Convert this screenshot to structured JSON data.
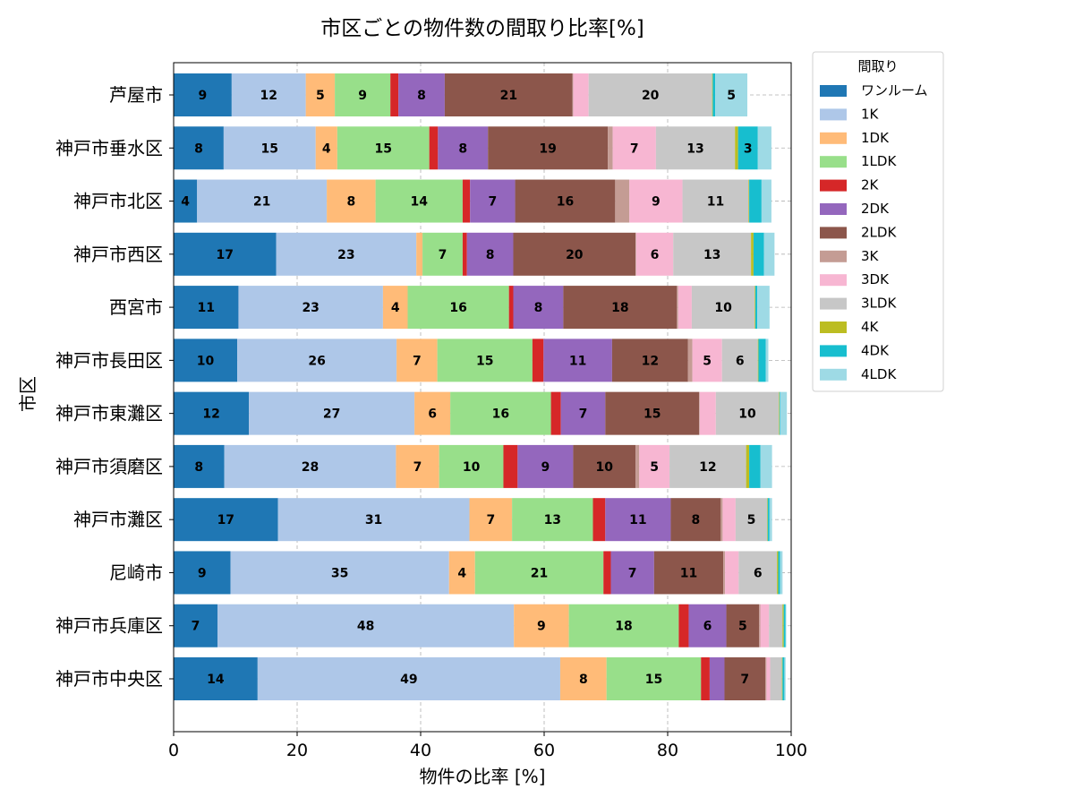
{
  "chart_data": {
    "type": "bar",
    "orientation": "horizontal",
    "stacked": true,
    "title": "市区ごとの物件数の間取り比率[%]",
    "xlabel": "物件の比率 [%]",
    "ylabel": "市区",
    "xlim": [
      0,
      100
    ],
    "xticks": [
      "0",
      "20",
      "40",
      "60",
      "80",
      "100"
    ],
    "grid": true,
    "legend_title": "間取り",
    "legend_position": "outside-top-right",
    "categories": [
      "神戸市中央区",
      "神戸市兵庫区",
      "尼崎市",
      "神戸市灘区",
      "神戸市須磨区",
      "神戸市東灘区",
      "神戸市長田区",
      "西宮市",
      "神戸市西区",
      "神戸市北区",
      "神戸市垂水区",
      "芦屋市"
    ],
    "series": [
      {
        "name": "ワンルーム",
        "color": "#1f77b4",
        "values": [
          13.6,
          7.1,
          9.2,
          16.9,
          8.2,
          12.2,
          10.3,
          10.5,
          16.6,
          3.8,
          8.1,
          9.4
        ]
      },
      {
        "name": "1K",
        "color": "#aec7e8",
        "values": [
          49.0,
          48.0,
          35.4,
          31.0,
          27.8,
          26.8,
          25.8,
          23.4,
          22.7,
          21.0,
          14.9,
          12.0
        ]
      },
      {
        "name": "1DK",
        "color": "#ffbb78",
        "values": [
          7.5,
          8.9,
          4.2,
          6.9,
          7.0,
          5.8,
          6.6,
          4.0,
          1.0,
          7.9,
          3.5,
          4.7
        ]
      },
      {
        "name": "1LDK",
        "color": "#98df8a",
        "values": [
          15.3,
          17.8,
          20.8,
          13.1,
          10.4,
          16.3,
          15.4,
          16.4,
          6.5,
          14.1,
          14.9,
          9.0
        ]
      },
      {
        "name": "2K",
        "color": "#d62728",
        "values": [
          1.4,
          1.6,
          1.2,
          2.0,
          2.3,
          1.6,
          1.8,
          0.7,
          0.7,
          1.2,
          1.4,
          1.3
        ]
      },
      {
        "name": "2DK",
        "color": "#9467bd",
        "values": [
          2.4,
          6.1,
          7.0,
          10.6,
          9.0,
          7.2,
          11.1,
          8.1,
          7.5,
          7.3,
          8.1,
          7.5
        ]
      },
      {
        "name": "2LDK",
        "color": "#8c564b",
        "values": [
          6.6,
          5.3,
          11.2,
          8.1,
          10.1,
          15.2,
          12.3,
          18.4,
          19.8,
          16.2,
          19.4,
          20.7
        ]
      },
      {
        "name": "3K",
        "color": "#c49c94",
        "values": [
          0.2,
          0.2,
          0.3,
          0.3,
          0.6,
          0.1,
          0.7,
          0.2,
          0.1,
          2.3,
          0.8,
          0.1
        ]
      },
      {
        "name": "3DK",
        "color": "#f7b6d2",
        "values": [
          0.6,
          1.4,
          2.2,
          2.1,
          4.9,
          2.6,
          4.8,
          2.2,
          6.0,
          8.6,
          7.0,
          2.5
        ]
      },
      {
        "name": "3LDK",
        "color": "#c7c7c7",
        "values": [
          1.9,
          2.2,
          6.2,
          5.1,
          12.4,
          10.2,
          5.8,
          10.2,
          12.6,
          10.7,
          12.8,
          20.0
        ]
      },
      {
        "name": "4K",
        "color": "#bcbd22",
        "values": [
          0.1,
          0.2,
          0.2,
          0.1,
          0.5,
          0.1,
          0.1,
          0.1,
          0.4,
          0.1,
          0.5,
          0.1
        ]
      },
      {
        "name": "4DK",
        "color": "#17becf",
        "values": [
          0.3,
          0.3,
          0.3,
          0.3,
          1.8,
          0.1,
          1.2,
          0.3,
          1.7,
          2.0,
          3.2,
          0.4
        ]
      },
      {
        "name": "4LDK",
        "color": "#9edae5",
        "values": [
          0.2,
          0.1,
          0.4,
          0.4,
          1.9,
          1.1,
          0.4,
          2.0,
          1.7,
          1.6,
          2.2,
          5.2
        ]
      }
    ]
  }
}
